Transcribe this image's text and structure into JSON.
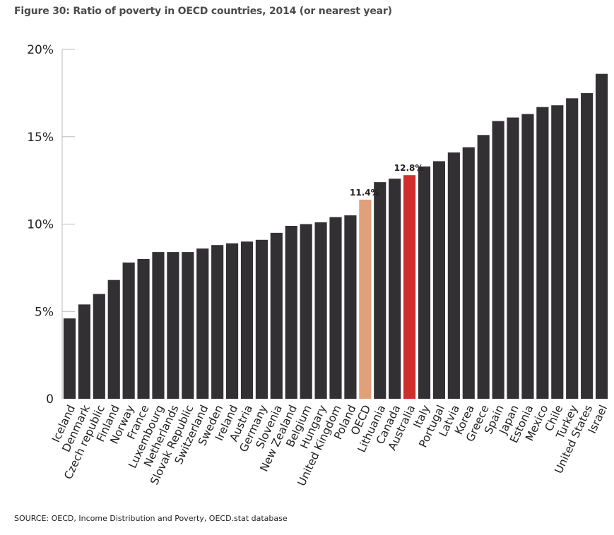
{
  "title": "Figure 30: Ratio of poverty in OECD countries, 2014 (or nearest year)",
  "source": "SOURCE: OECD, Income Distribution and Poverty, OECD.stat database",
  "chart_data": {
    "type": "bar",
    "title": "Figure 30: Ratio of poverty in OECD countries, 2014 (or nearest year)",
    "xlabel": "",
    "ylabel": "",
    "ylim": [
      0,
      20
    ],
    "yticks": [
      0,
      5,
      10,
      15,
      20
    ],
    "ytick_labels": [
      "0",
      "5%",
      "10%",
      "15%",
      "20%"
    ],
    "grid": false,
    "colors": {
      "default": "#333033",
      "OECD": "#e0a07a",
      "Australia": "#d02e2b"
    },
    "categories": [
      "Iceland",
      "Denmark",
      "Czech republic",
      "Finland",
      "Norway",
      "France",
      "Luxembourg",
      "Netherlands",
      "Slovak Republic",
      "Switzerland",
      "Sweden",
      "Ireland",
      "Austria",
      "Germany",
      "Slovenia",
      "New Zealand",
      "Belgium",
      "Hungary",
      "United Kingdom",
      "Poland",
      "OECD",
      "Lithuania",
      "Canada",
      "Australia",
      "Italy",
      "Portugal",
      "Latvia",
      "Korea",
      "Greece",
      "Spain",
      "Japan",
      "Estonia",
      "Mexico",
      "Chile",
      "Turkey",
      "United States",
      "Israel"
    ],
    "values": [
      4.6,
      5.4,
      6.0,
      6.8,
      7.8,
      8.0,
      8.4,
      8.4,
      8.4,
      8.6,
      8.8,
      8.9,
      9.0,
      9.1,
      9.5,
      9.9,
      10.0,
      10.1,
      10.4,
      10.5,
      11.4,
      12.4,
      12.6,
      12.8,
      13.3,
      13.6,
      14.1,
      14.4,
      15.1,
      15.9,
      16.1,
      16.3,
      16.7,
      16.8,
      17.2,
      17.5,
      18.6
    ],
    "data_labels": [
      {
        "category": "OECD",
        "label": "11.4%"
      },
      {
        "category": "Australia",
        "label": "12.8%"
      }
    ]
  }
}
